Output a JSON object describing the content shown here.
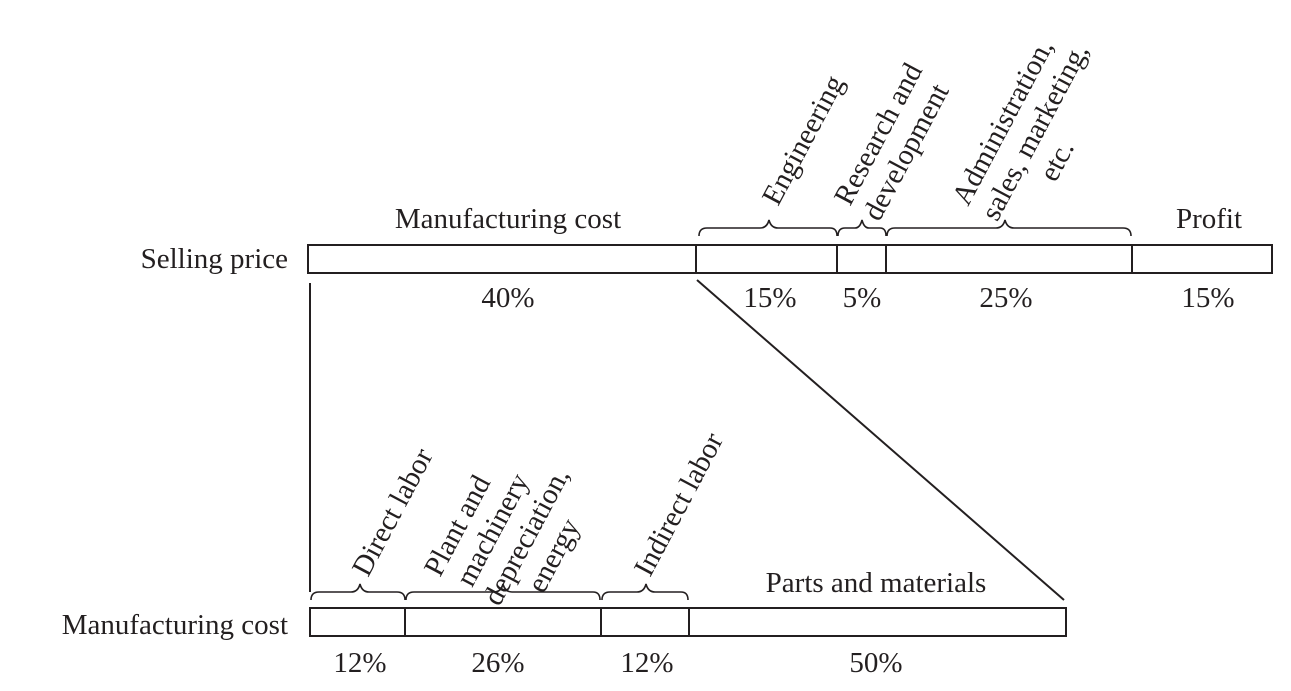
{
  "selling_price": {
    "row_label": "Selling price",
    "segments": [
      {
        "label": "Manufacturing cost",
        "percent": "40%"
      },
      {
        "label": "Engineering",
        "percent": "15%"
      },
      {
        "label": "Research and\ndevelopment",
        "percent": "5%"
      },
      {
        "label": "Administration,\nsales, marketing,\netc.",
        "percent": "25%"
      },
      {
        "label": "Profit",
        "percent": "15%"
      }
    ]
  },
  "manufacturing_cost": {
    "row_label": "Manufacturing cost",
    "segments": [
      {
        "label": "Direct labor",
        "percent": "12%"
      },
      {
        "label": "Plant and\nmachinery\ndepreciation,\nenergy",
        "percent": "26%"
      },
      {
        "label": "Indirect labor",
        "percent": "12%"
      },
      {
        "label": "Parts and materials",
        "percent": "50%"
      }
    ]
  }
}
